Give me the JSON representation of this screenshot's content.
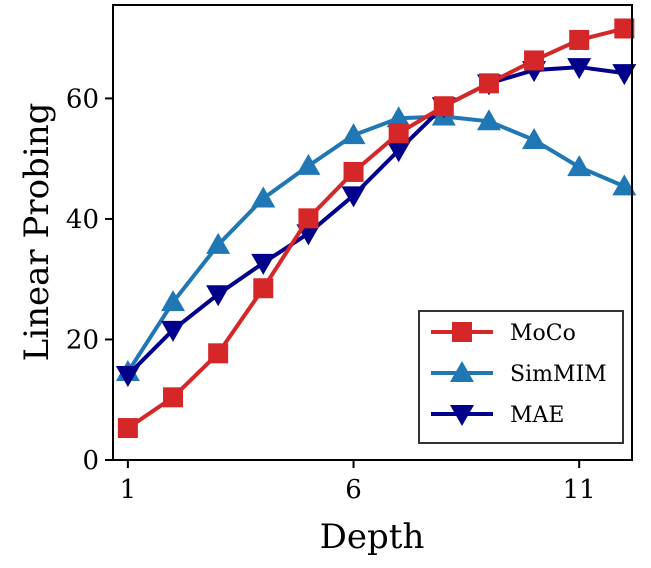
{
  "chart_data": {
    "type": "line",
    "title": "",
    "xlabel": "Depth",
    "ylabel": "Linear Probing",
    "xlim": [
      0.67,
      12.17
    ],
    "ylim": [
      0,
      75.5
    ],
    "xticks": [
      1,
      6,
      11
    ],
    "xtick_labels": [
      "1",
      "6",
      "11"
    ],
    "yticks": [
      0,
      20,
      40,
      60
    ],
    "ytick_labels": [
      "0",
      "20",
      "40",
      "60"
    ],
    "grid": false,
    "legend_position": "bottom-right",
    "x": [
      1,
      2,
      3,
      4,
      5,
      6,
      7,
      8,
      9,
      10,
      11,
      12
    ],
    "series": [
      {
        "name": "MoCo",
        "color": "#d62728",
        "marker": "square",
        "values": [
          5.3,
          10.4,
          17.7,
          28.5,
          40.1,
          47.8,
          54.2,
          58.7,
          62.5,
          66.3,
          69.7,
          71.6
        ]
      },
      {
        "name": "SimMIM",
        "color": "#1f77b4",
        "marker": "triangle-up",
        "values": [
          14.6,
          26.2,
          35.7,
          43.4,
          48.8,
          53.9,
          56.7,
          57.0,
          56.2,
          53.1,
          48.6,
          45.4
        ]
      },
      {
        "name": "MAE",
        "color": "#00008b",
        "marker": "triangle-down",
        "values": [
          14.1,
          21.6,
          27.5,
          32.7,
          37.6,
          43.9,
          51.4,
          58.7,
          62.5,
          64.7,
          65.2,
          64.2
        ]
      }
    ]
  }
}
